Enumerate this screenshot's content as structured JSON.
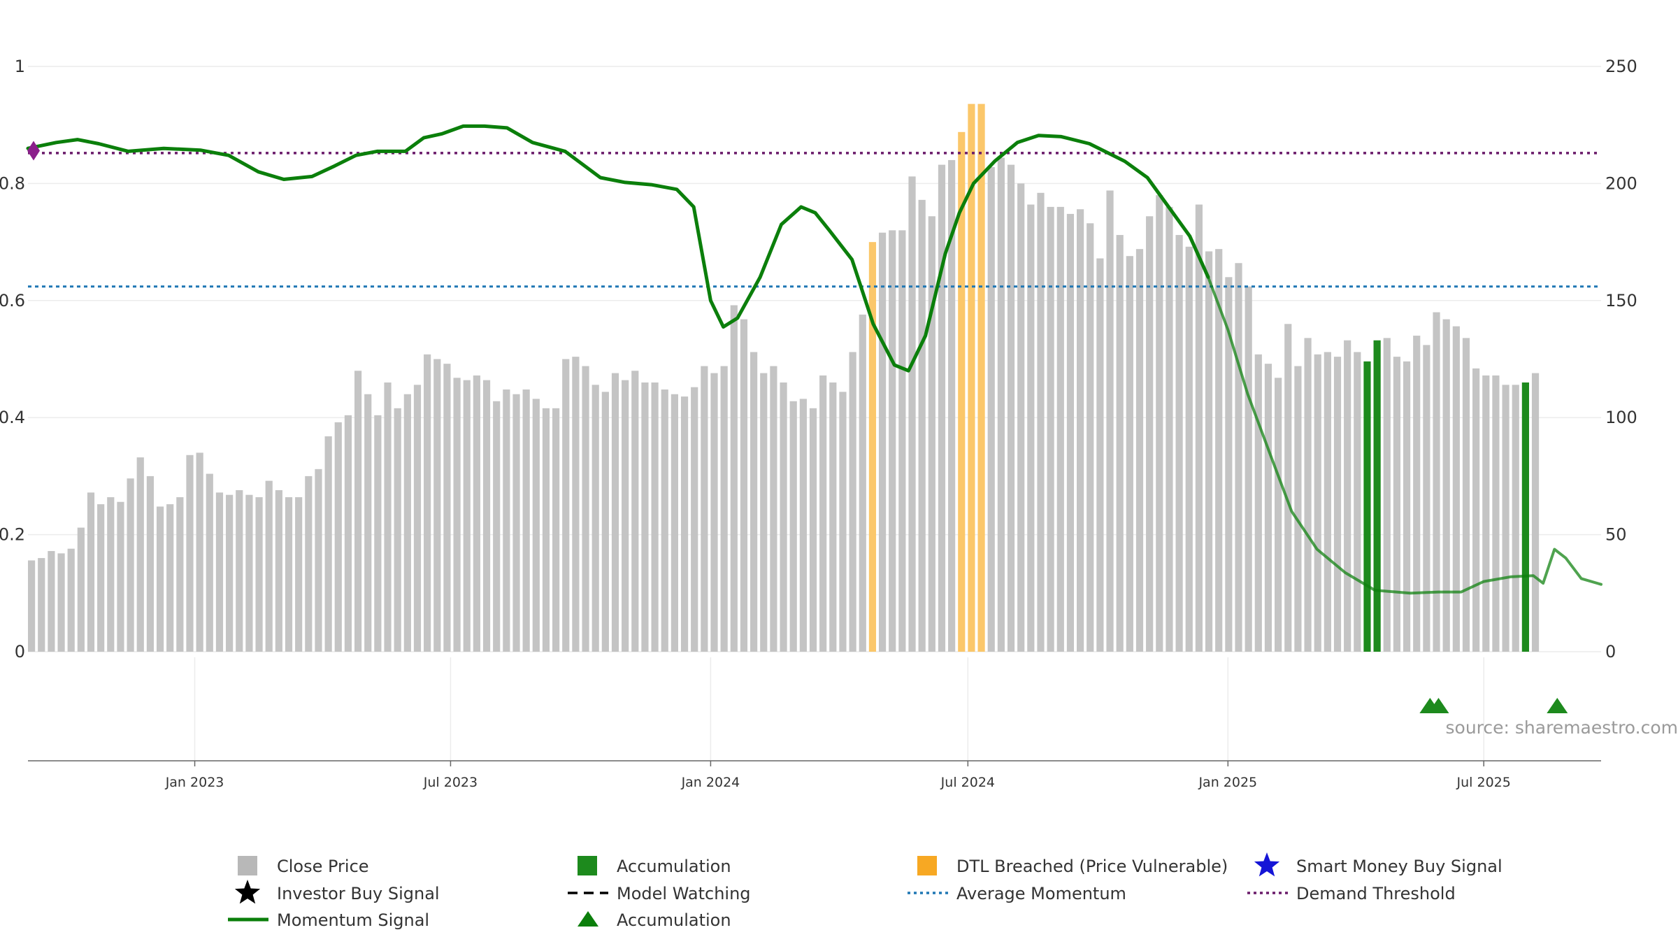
{
  "source_text": "source: sharemaestro.com",
  "chart_data": {
    "type": "bar",
    "left_axis": {
      "ylim": [
        0,
        1
      ],
      "ticks": [
        0,
        0.2,
        0.4,
        0.6,
        0.8,
        1
      ],
      "tick_labels": [
        "0",
        "0.2",
        "0.4",
        "0.6",
        "0.8",
        "1"
      ]
    },
    "right_axis": {
      "ylim": [
        0,
        250
      ],
      "ticks": [
        0,
        50,
        100,
        150,
        200,
        250
      ],
      "tick_labels": [
        "0",
        "50",
        "100",
        "150",
        "200",
        "250"
      ]
    },
    "x_axis": {
      "start": "2022-09-05",
      "end": "2025-09-22",
      "ticks": [
        {
          "date": "2023-01-01",
          "label": "Jan 2023"
        },
        {
          "date": "2023-07-01",
          "label": "Jul 2023"
        },
        {
          "date": "2024-01-01",
          "label": "Jan 2024"
        },
        {
          "date": "2024-07-01",
          "label": "Jul 2024"
        },
        {
          "date": "2025-01-01",
          "label": "Jan 2025"
        },
        {
          "date": "2025-07-01",
          "label": "Jul 2025"
        }
      ]
    },
    "bars": {
      "first_week": "2022-09-05",
      "interval": "weekly",
      "close_price": [
        39,
        40,
        43,
        42,
        44,
        53,
        68,
        63,
        66,
        64,
        74,
        83,
        75,
        62,
        63,
        66,
        84,
        85,
        76,
        68,
        67,
        69,
        67,
        66,
        73,
        69,
        66,
        66,
        75,
        78,
        92,
        98,
        101,
        120,
        110,
        101,
        115,
        104,
        110,
        114,
        127,
        125,
        123,
        117,
        116,
        118,
        116,
        107,
        112,
        110,
        112,
        108,
        104,
        104,
        125,
        126,
        122,
        114,
        111,
        119,
        116,
        120,
        115,
        115,
        112,
        110,
        109,
        113,
        122,
        119,
        122,
        148,
        142,
        128,
        119,
        122,
        115,
        107,
        108,
        104,
        118,
        115,
        111,
        128,
        144,
        172,
        179,
        180,
        180,
        203,
        193,
        186,
        208,
        210,
        219,
        231,
        231,
        207,
        211,
        208,
        200,
        191,
        196,
        190,
        190,
        187,
        189,
        183,
        168,
        197,
        178,
        169,
        172,
        186,
        195,
        190,
        178,
        173,
        191,
        171,
        172,
        160,
        166,
        156,
        127,
        123,
        117,
        140,
        122,
        134,
        127,
        128,
        126,
        133,
        128,
        124,
        133,
        134,
        126,
        124,
        135,
        131,
        145,
        142,
        139,
        134,
        121,
        118,
        118,
        114,
        114,
        115,
        119
      ],
      "dtl_breached_index": [
        85,
        94,
        95,
        96
      ],
      "accumulation_index": [
        135,
        136,
        151
      ]
    },
    "series": [
      {
        "name": "Momentum Signal",
        "color": "#0b7f0b",
        "points": [
          [
            "2022-09-05",
            0.86
          ],
          [
            "2022-09-25",
            0.87
          ],
          [
            "2022-10-10",
            0.875
          ],
          [
            "2022-10-25",
            0.868
          ],
          [
            "2022-11-15",
            0.855
          ],
          [
            "2022-12-10",
            0.86
          ],
          [
            "2023-01-05",
            0.857
          ],
          [
            "2023-01-25",
            0.848
          ],
          [
            "2023-02-15",
            0.82
          ],
          [
            "2023-03-05",
            0.807
          ],
          [
            "2023-03-25",
            0.812
          ],
          [
            "2023-04-10",
            0.83
          ],
          [
            "2023-04-25",
            0.848
          ],
          [
            "2023-05-10",
            0.855
          ],
          [
            "2023-05-30",
            0.855
          ],
          [
            "2023-06-12",
            0.878
          ],
          [
            "2023-06-25",
            0.885
          ],
          [
            "2023-07-10",
            0.898
          ],
          [
            "2023-07-25",
            0.898
          ],
          [
            "2023-08-10",
            0.895
          ],
          [
            "2023-08-28",
            0.87
          ],
          [
            "2023-09-20",
            0.855
          ],
          [
            "2023-10-15",
            0.81
          ],
          [
            "2023-11-01",
            0.802
          ],
          [
            "2023-11-20",
            0.798
          ],
          [
            "2023-12-08",
            0.79
          ],
          [
            "2023-12-20",
            0.76
          ],
          [
            "2024-01-01",
            0.6
          ],
          [
            "2024-01-10",
            0.555
          ],
          [
            "2024-01-20",
            0.57
          ],
          [
            "2024-02-05",
            0.64
          ],
          [
            "2024-02-20",
            0.73
          ],
          [
            "2024-03-05",
            0.76
          ],
          [
            "2024-03-15",
            0.75
          ],
          [
            "2024-03-25",
            0.72
          ],
          [
            "2024-04-10",
            0.67
          ],
          [
            "2024-04-25",
            0.56
          ],
          [
            "2024-05-10",
            0.49
          ],
          [
            "2024-05-20",
            0.48
          ],
          [
            "2024-06-01",
            0.54
          ],
          [
            "2024-06-15",
            0.68
          ],
          [
            "2024-06-25",
            0.75
          ],
          [
            "2024-07-05",
            0.8
          ],
          [
            "2024-07-20",
            0.838
          ],
          [
            "2024-08-05",
            0.87
          ],
          [
            "2024-08-20",
            0.882
          ],
          [
            "2024-09-05",
            0.88
          ],
          [
            "2024-09-25",
            0.868
          ],
          [
            "2024-10-20",
            0.838
          ],
          [
            "2024-11-05",
            0.81
          ],
          [
            "2024-11-20",
            0.76
          ],
          [
            "2024-12-05",
            0.71
          ],
          [
            "2024-12-18",
            0.64
          ],
          [
            "2025-01-01",
            0.55
          ],
          [
            "2025-01-15",
            0.44
          ],
          [
            "2025-02-01",
            0.33
          ],
          [
            "2025-02-15",
            0.24
          ],
          [
            "2025-03-05",
            0.175
          ],
          [
            "2025-03-25",
            0.135
          ],
          [
            "2025-04-15",
            0.105
          ],
          [
            "2025-05-10",
            0.1
          ],
          [
            "2025-05-30",
            0.102
          ],
          [
            "2025-06-15",
            0.102
          ],
          [
            "2025-07-01",
            0.12
          ],
          [
            "2025-07-20",
            0.128
          ],
          [
            "2025-08-05",
            0.13
          ],
          [
            "2025-08-12",
            0.117
          ],
          [
            "2025-08-20",
            0.175
          ],
          [
            "2025-08-28",
            0.16
          ],
          [
            "2025-09-08",
            0.125
          ],
          [
            "2025-09-22",
            0.115
          ]
        ]
      }
    ],
    "average_momentum": 0.624,
    "demand_threshold": 0.852,
    "markers": {
      "demand_threshold_diamond": {
        "date": "2022-09-05",
        "value": 0.856
      },
      "accumulation_triangles": [
        "2025-05-22",
        "2025-05-28",
        "2025-08-20"
      ]
    },
    "colors": {
      "close_price": "#c4c4c4",
      "accumulation": "#1d8a1d",
      "dtl_breached": "#fbc76a",
      "momentum": "#0b7f0b",
      "average_momentum": "#1f77b4",
      "demand_threshold": "#6a1b6a",
      "smart_money": "#1515d6",
      "investor_buy": "#000000"
    },
    "legend": [
      {
        "label": "Close Price",
        "symbol": "square",
        "color": "#b8b8b8"
      },
      {
        "label": "Accumulation",
        "symbol": "square",
        "color": "#1d8a1d"
      },
      {
        "label": "DTL Breached (Price Vulnerable)",
        "symbol": "square",
        "color": "#f7a823"
      },
      {
        "label": "Smart Money Buy Signal",
        "symbol": "star",
        "color": "#1515d6"
      },
      {
        "label": "Investor Buy Signal",
        "symbol": "star",
        "color": "#000000"
      },
      {
        "label": "Model Watching",
        "symbol": "dash",
        "color": "#000000"
      },
      {
        "label": "Average Momentum",
        "symbol": "dot",
        "color": "#1f77b4"
      },
      {
        "label": "Demand Threshold",
        "symbol": "dot",
        "color": "#6a1b6a"
      },
      {
        "label": "Momentum Signal",
        "symbol": "line",
        "color": "#0b7f0b"
      },
      {
        "label": "Accumulation",
        "symbol": "triangle",
        "color": "#0b7f0b"
      }
    ]
  }
}
